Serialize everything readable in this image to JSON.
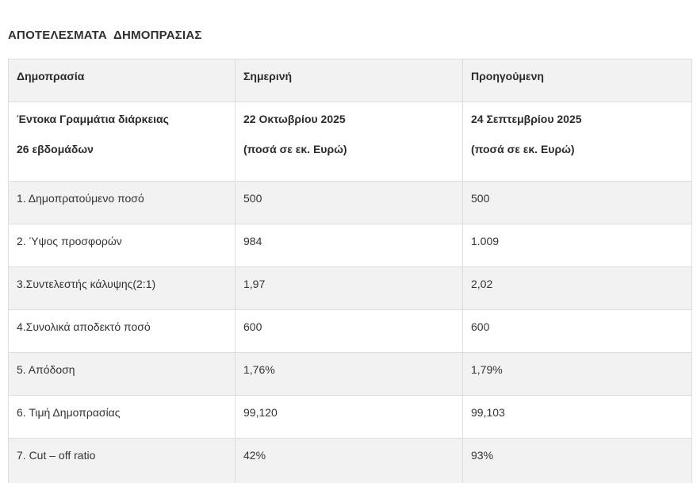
{
  "page": {
    "title": "ΑΠΟΤΕΛΕΣΜΑΤΑ  ΔΗΜΟΠΡΑΣΙΑΣ"
  },
  "table": {
    "headers": [
      "Δημοπρασία",
      "Σημερινή",
      "Προηγούμενη"
    ],
    "subheader": {
      "instrument_line1": "Έντοκα Γραμμάτια διάρκειας",
      "instrument_line2": "26 εβδομάδων",
      "current_line1": "22 Οκτωβρίου 2025",
      "current_line2": "(ποσά σε εκ. Ευρώ)",
      "previous_line1": "24 Σεπτεμβρίου 2025",
      "previous_line2": "(ποσά σε εκ. Ευρώ)"
    },
    "rows": [
      {
        "label": "1. Δημοπρατούμενο ποσό",
        "current": "500",
        "previous": "500"
      },
      {
        "label": "2. Ύψος προσφορών",
        "current": "984",
        "previous": "1.009"
      },
      {
        "label": "3.Συντελεστής κάλυψης(2:1)",
        "current": "1,97",
        "previous": "2,02"
      },
      {
        "label": "4.Συνολικά αποδεκτό ποσό",
        "current": "600",
        "previous": "600"
      },
      {
        "label": "5. Απόδοση",
        "current": "1,76%",
        "previous": "1,79%"
      },
      {
        "label": "6. Τιμή Δημοπρασίας",
        "current": "99,120",
        "previous": "99,103"
      },
      {
        "label": "7. Cut – off ratio",
        "current": "42%",
        "previous": "93%"
      }
    ],
    "colors": {
      "stripe_bg": "#f2f2f2",
      "border": "#dddddd",
      "text": "#333333"
    }
  }
}
